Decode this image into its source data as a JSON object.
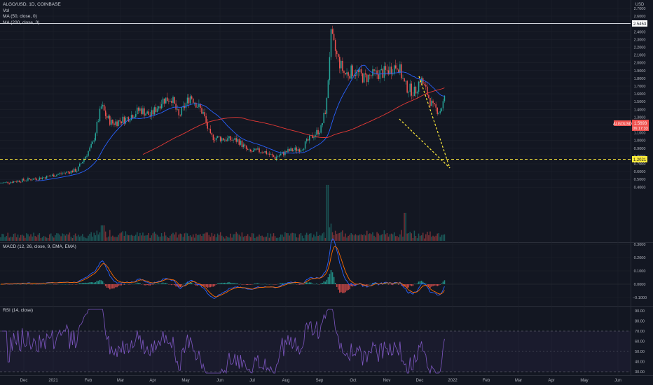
{
  "main": {
    "legend": [
      "ALGO/USD, 1D, COINBASE",
      "Vol",
      "MA (50, close, 0)",
      "MA (200, close, 0)"
    ],
    "price_axis": {
      "unit": "USD",
      "ticks": [
        "2.7000",
        "2.6000",
        "2.5000",
        "2.4000",
        "2.3000",
        "2.2000",
        "2.1000",
        "2.0000",
        "1.9000",
        "1.8000",
        "1.7000",
        "1.6000",
        "1.5000",
        "1.4000",
        "1.3000",
        "1.2000",
        "1.1000",
        "1.0000",
        "0.9000",
        "0.8000",
        "0.7000",
        "0.6000",
        "0.5000",
        "0.4000"
      ]
    },
    "resistance_label": "2.5453",
    "support_label": "1.2021",
    "current_symbol": "ALGOUSD",
    "current_price": "1.5693",
    "countdown": "06:17:33"
  },
  "macd": {
    "legend": "MACD (12, 26, close, 9, EMA, EMA)",
    "ticks": [
      "0.3000",
      "0.2000",
      "0.1000",
      "0.0000",
      "−0.1000"
    ]
  },
  "rsi": {
    "legend": "RSI (14, close)",
    "ticks": [
      "90.00",
      "80.00",
      "70.00",
      "60.00",
      "50.00",
      "40.00",
      "30.00"
    ]
  },
  "time_axis": [
    "Dec",
    "2021",
    "Feb",
    "Mar",
    "Apr",
    "May",
    "Jun",
    "Jul",
    "Aug",
    "Sep",
    "Oct",
    "Nov",
    "Dec",
    "2022",
    "Feb",
    "Mar",
    "Apr",
    "May",
    "Jun"
  ],
  "colors": {
    "bg": "#131722",
    "up": "#26a69a",
    "down": "#ef5350",
    "ma50": "#2962ff",
    "ma200": "#e53935",
    "rsi": "#7e57c2",
    "dash": "#ffeb3b"
  }
}
